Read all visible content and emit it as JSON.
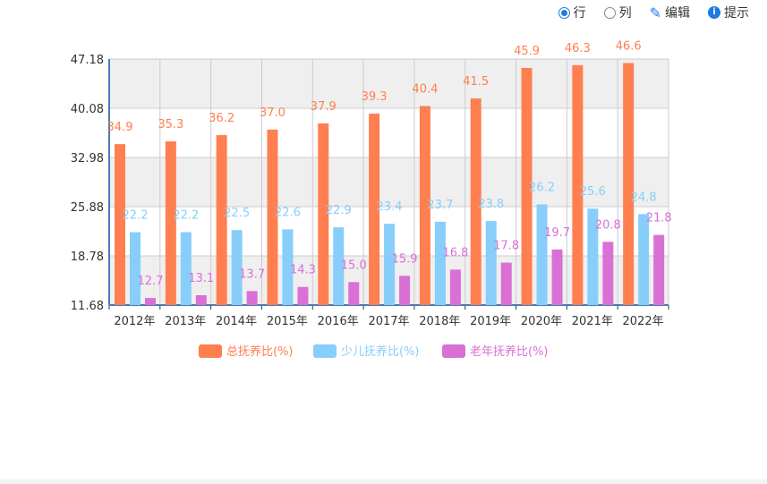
{
  "toolbar": {
    "row": "行",
    "col": "列",
    "edit": "编辑",
    "tip": "提示"
  },
  "chart_data": {
    "type": "bar",
    "categories": [
      "2012年",
      "2013年",
      "2014年",
      "2015年",
      "2016年",
      "2017年",
      "2018年",
      "2019年",
      "2020年",
      "2021年",
      "2022年"
    ],
    "series": [
      {
        "name": "总抚养比(%)",
        "color": "#ff7f50",
        "values": [
          34.9,
          35.3,
          36.2,
          37.0,
          37.9,
          39.3,
          40.4,
          41.5,
          45.9,
          46.3,
          46.6
        ]
      },
      {
        "name": "少儿抚养比(%)",
        "color": "#87cefa",
        "values": [
          22.2,
          22.2,
          22.5,
          22.6,
          22.9,
          23.4,
          23.7,
          23.8,
          26.2,
          25.6,
          24.8
        ]
      },
      {
        "name": "老年抚养比(%)",
        "color": "#da70d6",
        "values": [
          12.7,
          13.1,
          13.7,
          14.3,
          15.0,
          15.9,
          16.8,
          17.8,
          19.7,
          20.8,
          21.8
        ]
      }
    ],
    "yticks": [
      "11.68",
      "18.78",
      "25.88",
      "32.98",
      "40.08",
      "47.18"
    ],
    "ylim": [
      11.68,
      47.18
    ],
    "grid": true,
    "legend": "bottom"
  }
}
